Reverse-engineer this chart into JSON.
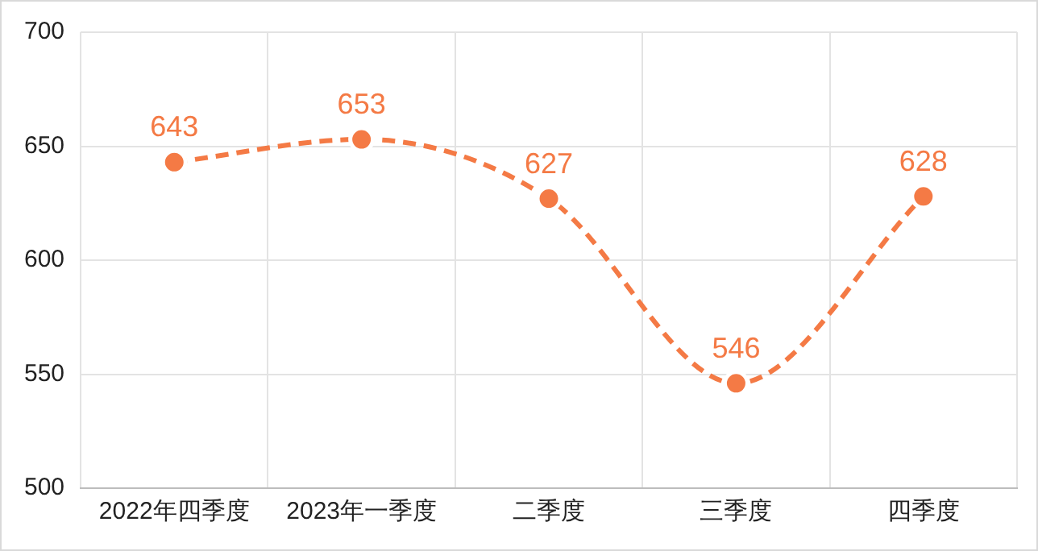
{
  "chart_data": {
    "type": "line",
    "categories": [
      "2022年四季度",
      "2023年一季度",
      "二季度",
      "三季度",
      "四季度"
    ],
    "series": [
      {
        "color": "#f47a45",
        "values": [
          643,
          653,
          627,
          546,
          628
        ]
      }
    ],
    "ylim": [
      500,
      700
    ],
    "yticks": [
      500,
      550,
      600,
      650,
      700
    ],
    "grid": true,
    "legend": false,
    "marker": "circle",
    "line_style": "dashed",
    "data_labels": true
  }
}
